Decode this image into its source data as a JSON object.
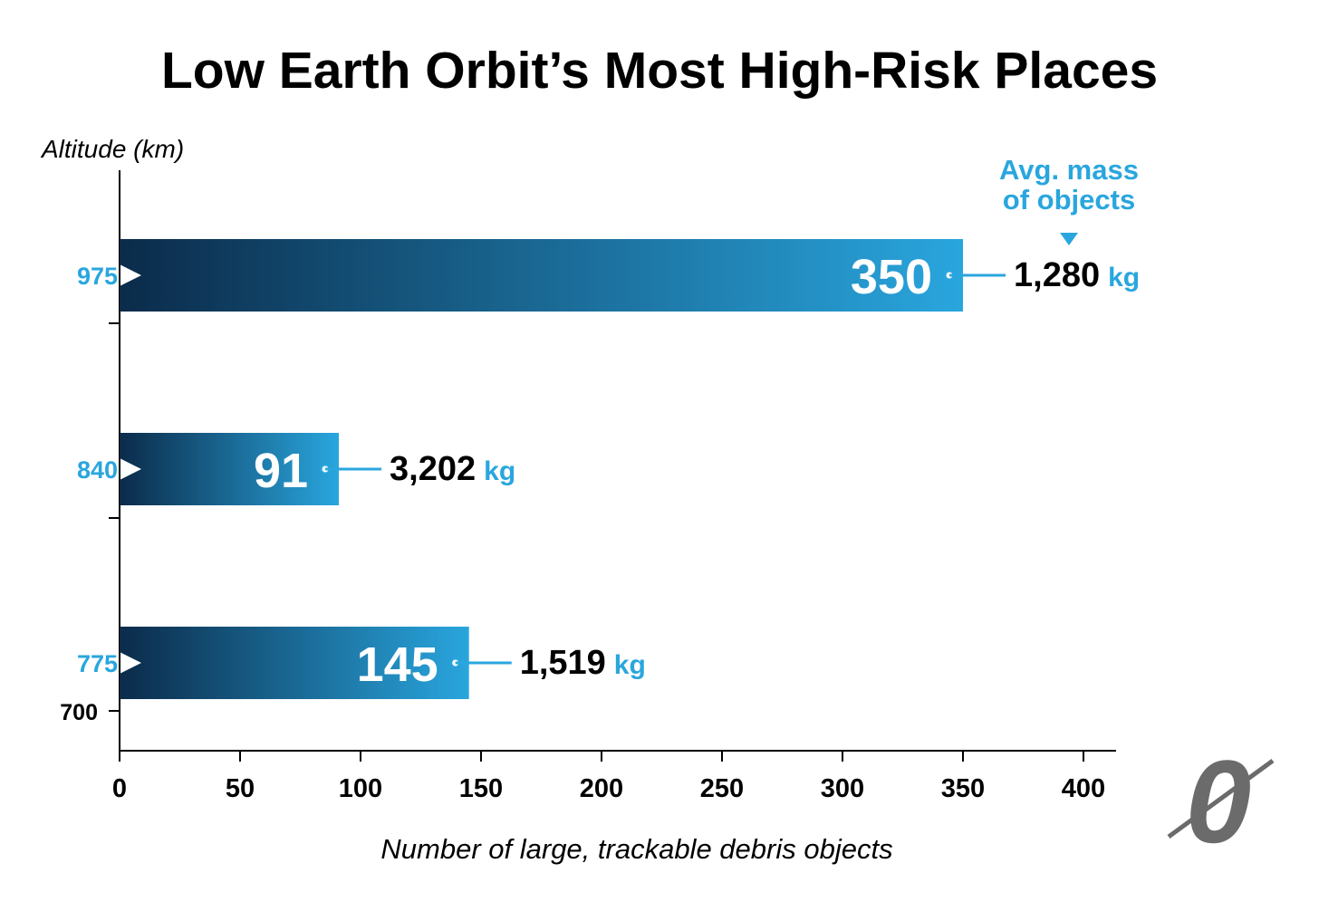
{
  "chart_data": {
    "type": "bar",
    "orientation": "horizontal",
    "title": "Low Earth Orbit’s Most High-Risk Places",
    "ylabel": "Altitude (km)",
    "xlabel": "Number of large, trackable debris objects",
    "xlim": [
      0,
      400
    ],
    "xticks": [
      "0",
      "50",
      "100",
      "150",
      "200",
      "250",
      "300",
      "350",
      "400"
    ],
    "y_axis_extra_label": "700",
    "annotation_title": "Avg. mass of objects",
    "annotation_lines": [
      "Avg. mass",
      "of objects"
    ],
    "unit_label": "kg",
    "categories": [
      "975",
      "840",
      "775"
    ],
    "values": [
      350,
      91,
      145
    ],
    "value_labels": [
      "350",
      "91",
      "145"
    ],
    "avg_mass_labels": [
      "1,280",
      "3,202",
      "1,519"
    ],
    "colors": {
      "bar_dark": "#0b2b4a",
      "bar_light": "#29a6de",
      "accent": "#29a6de",
      "text": "#000000",
      "logo": "#6b6b6b"
    },
    "logo_glyph": "0"
  }
}
